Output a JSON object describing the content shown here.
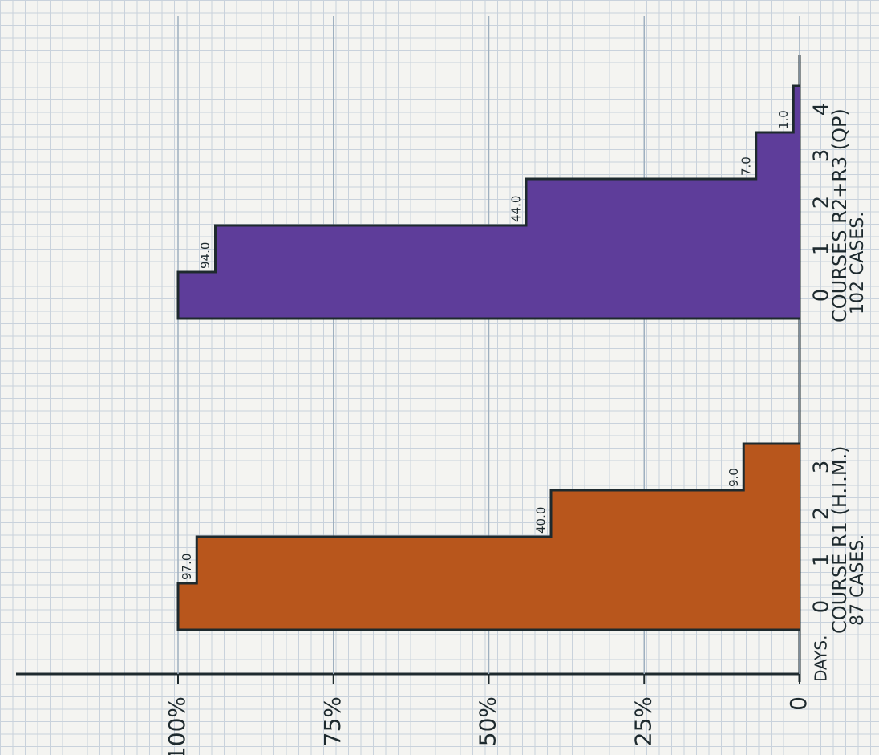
{
  "chart_data": {
    "type": "step",
    "category_label": "DAYS.",
    "xlim": [
      0,
      100
    ],
    "xticks": [
      0,
      {
        "value": 25,
        "label": "25%"
      },
      {
        "value": 50,
        "label": "50%"
      },
      {
        "value": 75,
        "label": "75%"
      },
      {
        "value": 100,
        "label": "100%"
      }
    ],
    "grid": true,
    "groups": [
      {
        "name": "COURSE R1 (H.I.M.)",
        "cases": "87 CASES.",
        "color": "#b8561c",
        "categories": [
          "0",
          "1",
          "2",
          "3"
        ],
        "values": [
          100,
          97,
          40,
          9
        ],
        "value_labels": [
          null,
          "97.0",
          "40.0",
          "9.0"
        ]
      },
      {
        "name": "COURSES R2+R3 (QP)",
        "cases": "102 CASES.",
        "color": "#5e3d9a",
        "categories": [
          "0",
          "1",
          "2",
          "3",
          "4"
        ],
        "values": [
          100,
          94,
          44,
          7,
          1
        ],
        "value_labels": [
          null,
          "94.0",
          "44.0",
          "7.0",
          "1.0"
        ]
      }
    ]
  }
}
